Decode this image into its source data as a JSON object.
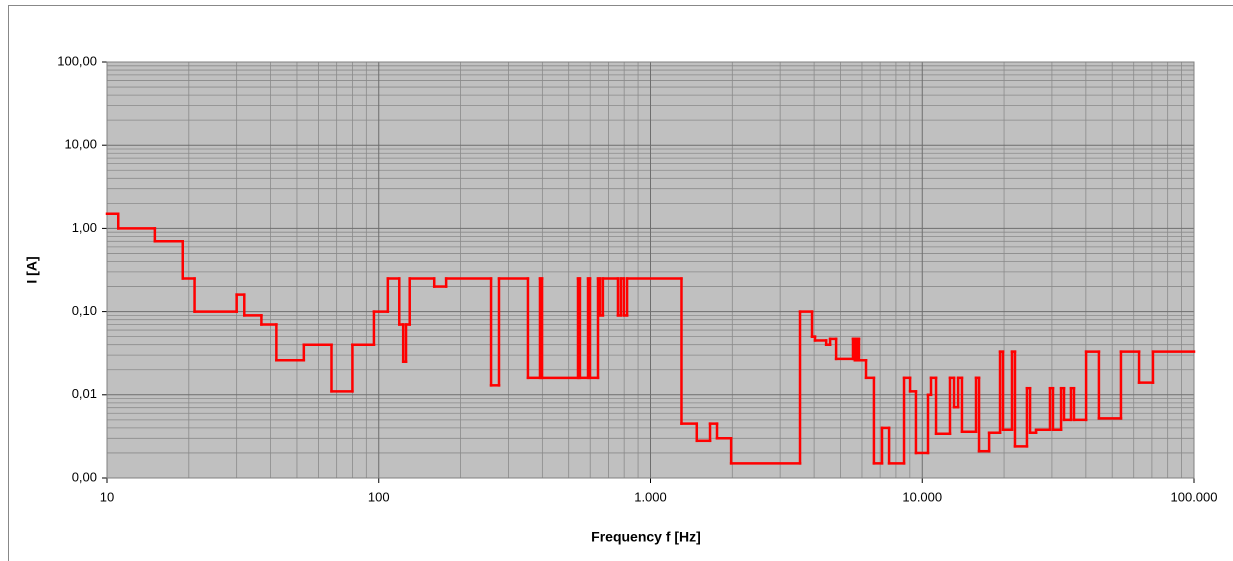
{
  "chart_data": {
    "type": "step",
    "x_label": "Frequency f [Hz]",
    "y_label": "I [A]",
    "x": [
      10,
      11,
      15,
      19,
      21,
      30,
      32,
      37,
      42,
      53,
      67,
      80,
      96,
      108,
      119,
      123,
      126,
      130,
      160,
      177,
      259,
      277,
      354,
      392,
      399,
      541,
      550,
      589,
      599,
      641,
      652,
      668,
      759,
      778,
      798,
      820,
      1300,
      1480,
      1656,
      1757,
      1980,
      3550,
      3930,
      4030,
      4430,
      4580,
      4820,
      5560,
      5650,
      5750,
      5850,
      6210,
      6640,
      7110,
      7550,
      8570,
      9020,
      9480,
      10500,
      10770,
      11240,
      12650,
      13090,
      13550,
      14000,
      15770,
      16180,
      17620,
      19330,
      19820,
      21390,
      21940,
      24280,
      24930,
      26230,
      29510,
      30280,
      32420,
      33240,
      35260,
      36170,
      40080,
      44680,
      53850,
      62780,
      70630
    ],
    "values": [
      1.5,
      1,
      0.7,
      0.25,
      0.1,
      0.16,
      0.09,
      0.07,
      0.026,
      0.04,
      0.011,
      0.04,
      0.1,
      0.25,
      0.07,
      0.025,
      0.07,
      0.25,
      0.2,
      0.25,
      0.013,
      0.25,
      0.016,
      0.25,
      0.016,
      0.25,
      0.016,
      0.25,
      0.016,
      0.25,
      0.09,
      0.25,
      0.09,
      0.25,
      0.09,
      0.25,
      0.0045,
      0.0028,
      0.0045,
      0.003,
      0.0015,
      0.1,
      0.05,
      0.045,
      0.04,
      0.047,
      0.027,
      0.047,
      0.026,
      0.047,
      0.026,
      0.016,
      0.0015,
      0.004,
      0.0015,
      0.016,
      0.011,
      0.002,
      0.01,
      0.016,
      0.0034,
      0.016,
      0.0071,
      0.016,
      0.0036,
      0.016,
      0.0021,
      0.0035,
      0.033,
      0.0038,
      0.033,
      0.0024,
      0.012,
      0.0035,
      0.0038,
      0.012,
      0.0038,
      0.012,
      0.005,
      0.012,
      0.005,
      0.033,
      0.0052,
      0.033,
      0.014,
      0.033
    ],
    "color": "#ff0000",
    "xlim": [
      10,
      100000
    ],
    "ylim": [
      0.001,
      100
    ],
    "xlog": true,
    "ylog": true,
    "grid": true,
    "minor_grid": true,
    "xticks": [
      10,
      100,
      {
        "value": 1000,
        "label": "1.000"
      },
      {
        "value": 10000,
        "label": "10.000"
      },
      {
        "value": 100000,
        "label": "100.000"
      }
    ],
    "yticks": [
      {
        "value": 0.001,
        "label": "0,00"
      },
      {
        "value": 0.01,
        "label": "0,01"
      },
      {
        "value": 0.1,
        "label": "0,10"
      },
      {
        "value": 1,
        "label": "1,00"
      },
      {
        "value": 10,
        "label": "10,00"
      },
      {
        "value": 100,
        "label": "100,00"
      }
    ]
  }
}
